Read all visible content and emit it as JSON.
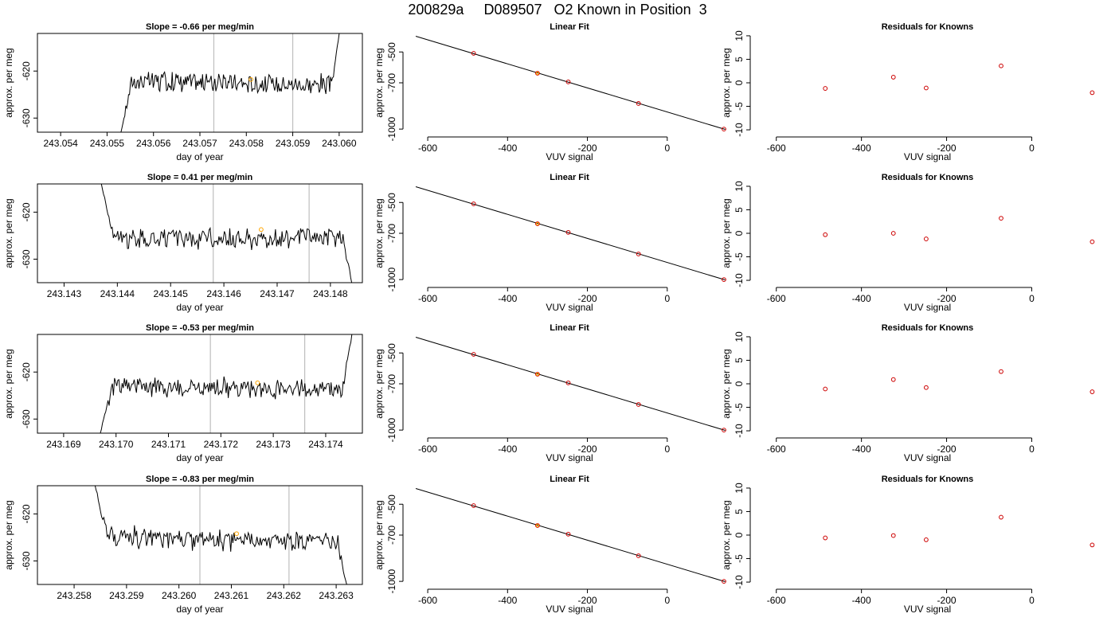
{
  "suptitle": "200829a     D089507   O2 Known in Position  3",
  "chart_data": [
    {
      "type": "line",
      "title": "Slope =  -0.66  per meg/min",
      "xlabel": "day of year",
      "ylabel": "approx. per meg",
      "xlim": [
        243.0535,
        243.0605
      ],
      "ylim": [
        -633,
        -612
      ],
      "xticks": [
        "243.054",
        "243.055",
        "243.056",
        "243.057",
        "243.058",
        "243.059",
        "243.060"
      ],
      "yticks": [
        -620,
        -630
      ],
      "vlines": [
        243.0573,
        243.059
      ],
      "trace": {
        "start": 243.0553,
        "end": 243.06,
        "level": -622.5,
        "trend": -0.66,
        "start_value": -633,
        "end_value": -612
      },
      "marker": {
        "x": 243.0581,
        "y": -621.8
      }
    },
    {
      "type": "scatter",
      "title": "Linear Fit",
      "xlabel": "VUV signal",
      "ylabel": "approx. per meg",
      "xlim": [
        -650,
        160
      ],
      "ylim": [
        -1020,
        -380
      ],
      "xticks": [
        -600,
        -400,
        -200,
        0
      ],
      "yticks": [
        -500,
        -700,
        -1000
      ],
      "line": {
        "x": [
          -630,
          145
        ],
        "y": [
          -398,
          -1002
        ]
      },
      "points": [
        {
          "x": -485,
          "y": -509
        },
        {
          "x": -325,
          "y": -638
        },
        {
          "x": -248,
          "y": -694
        },
        {
          "x": -72,
          "y": -834
        },
        {
          "x": 142,
          "y": -1000
        }
      ],
      "known_index": 1
    },
    {
      "type": "scatter",
      "title": "Residuals for Knowns",
      "xlabel": "VUV signal",
      "ylabel": "approx. per meg",
      "xlim": [
        -650,
        160
      ],
      "ylim": [
        -10.5,
        10.5
      ],
      "xticks": [
        -600,
        -400,
        -200,
        0
      ],
      "yticks": [
        -10,
        -5,
        0,
        5,
        10
      ],
      "points": [
        {
          "x": -485,
          "y": -1.2
        },
        {
          "x": -325,
          "y": 1.2
        },
        {
          "x": -248,
          "y": -1.1
        },
        {
          "x": -72,
          "y": 3.6
        },
        {
          "x": 142,
          "y": -2.1
        }
      ]
    },
    {
      "type": "line",
      "title": "Slope =  0.41  per meg/min",
      "xlabel": "day of year",
      "ylabel": "approx. per meg",
      "xlim": [
        243.1425,
        243.1486
      ],
      "ylim": [
        -635,
        -614
      ],
      "xticks": [
        "243.143",
        "243.144",
        "243.145",
        "243.146",
        "243.147",
        "243.148"
      ],
      "yticks": [
        -620,
        -630
      ],
      "vlines": [
        243.1458,
        243.1476
      ],
      "trace": {
        "start": 243.1437,
        "end": 243.1484,
        "level": -625.5,
        "trend": 0.41,
        "start_value": -614,
        "end_value": -635
      },
      "marker": {
        "x": 243.1467,
        "y": -623.7
      }
    },
    {
      "type": "scatter",
      "title": "Linear Fit",
      "xlabel": "VUV signal",
      "ylabel": "approx. per meg",
      "xlim": [
        -650,
        160
      ],
      "ylim": [
        -1020,
        -380
      ],
      "xticks": [
        -600,
        -400,
        -200,
        0
      ],
      "yticks": [
        -500,
        -700,
        -1000
      ],
      "line": {
        "x": [
          -630,
          145
        ],
        "y": [
          -398,
          -1002
        ]
      },
      "points": [
        {
          "x": -485,
          "y": -509
        },
        {
          "x": -325,
          "y": -638
        },
        {
          "x": -248,
          "y": -694
        },
        {
          "x": -72,
          "y": -834
        },
        {
          "x": 142,
          "y": -1000
        }
      ],
      "known_index": 1
    },
    {
      "type": "scatter",
      "title": "Residuals for Knowns",
      "xlabel": "VUV signal",
      "ylabel": "approx. per meg",
      "xlim": [
        -650,
        160
      ],
      "ylim": [
        -10.5,
        10.5
      ],
      "xticks": [
        -600,
        -400,
        -200,
        0
      ],
      "yticks": [
        -10,
        -5,
        0,
        5,
        10
      ],
      "points": [
        {
          "x": -485,
          "y": -0.3
        },
        {
          "x": -325,
          "y": 0.0
        },
        {
          "x": -248,
          "y": -1.2
        },
        {
          "x": -72,
          "y": 3.2
        },
        {
          "x": 142,
          "y": -1.8
        }
      ]
    },
    {
      "type": "line",
      "title": "Slope =  -0.53  per meg/min",
      "xlabel": "day of year",
      "ylabel": "approx. per meg",
      "xlim": [
        243.1685,
        243.1747
      ],
      "ylim": [
        -633,
        -612
      ],
      "xticks": [
        "243.169",
        "243.170",
        "243.171",
        "243.172",
        "243.173",
        "243.174"
      ],
      "yticks": [
        -620,
        -630
      ],
      "vlines": [
        243.1718,
        243.1736
      ],
      "trace": {
        "start": 243.1697,
        "end": 243.1745,
        "level": -623.5,
        "trend": -0.53,
        "start_value": -633,
        "end_value": -612
      },
      "marker": {
        "x": 243.1727,
        "y": -622.3
      }
    },
    {
      "type": "scatter",
      "title": "Linear Fit",
      "xlabel": "VUV signal",
      "ylabel": "approx. per meg",
      "xlim": [
        -650,
        160
      ],
      "ylim": [
        -1020,
        -380
      ],
      "xticks": [
        -600,
        -400,
        -200,
        0
      ],
      "yticks": [
        -500,
        -700,
        -1000
      ],
      "line": {
        "x": [
          -630,
          145
        ],
        "y": [
          -398,
          -1002
        ]
      },
      "points": [
        {
          "x": -485,
          "y": -509
        },
        {
          "x": -325,
          "y": -638
        },
        {
          "x": -248,
          "y": -694
        },
        {
          "x": -72,
          "y": -834
        },
        {
          "x": 142,
          "y": -1000
        }
      ],
      "known_index": 1
    },
    {
      "type": "scatter",
      "title": "Residuals for Knowns",
      "xlabel": "VUV signal",
      "ylabel": "approx. per meg",
      "xlim": [
        -650,
        160
      ],
      "ylim": [
        -10.5,
        10.5
      ],
      "xticks": [
        -600,
        -400,
        -200,
        0
      ],
      "yticks": [
        -10,
        -5,
        0,
        5,
        10
      ],
      "points": [
        {
          "x": -485,
          "y": -1.1
        },
        {
          "x": -325,
          "y": 0.9
        },
        {
          "x": -248,
          "y": -0.8
        },
        {
          "x": -72,
          "y": 2.6
        },
        {
          "x": 142,
          "y": -1.7
        }
      ]
    },
    {
      "type": "line",
      "title": "Slope =  -0.83  per meg/min",
      "xlabel": "day of year",
      "ylabel": "approx. per meg",
      "xlim": [
        243.2573,
        243.2635
      ],
      "ylim": [
        -635,
        -614
      ],
      "xticks": [
        "243.258",
        "243.259",
        "243.260",
        "243.261",
        "243.262",
        "243.263"
      ],
      "yticks": [
        -620,
        -630
      ],
      "vlines": [
        243.2604,
        243.2621
      ],
      "trace": {
        "start": 243.2584,
        "end": 243.2632,
        "level": -625.5,
        "trend": -0.83,
        "start_value": -614,
        "end_value": -635
      },
      "marker": {
        "x": 243.2611,
        "y": -624.2
      }
    },
    {
      "type": "scatter",
      "title": "Linear Fit",
      "xlabel": "VUV signal",
      "ylabel": "approx. per meg",
      "xlim": [
        -650,
        160
      ],
      "ylim": [
        -1020,
        -380
      ],
      "xticks": [
        -600,
        -400,
        -200,
        0
      ],
      "yticks": [
        -500,
        -700,
        -1000
      ],
      "line": {
        "x": [
          -630,
          145
        ],
        "y": [
          -398,
          -1002
        ]
      },
      "points": [
        {
          "x": -485,
          "y": -509
        },
        {
          "x": -325,
          "y": -638
        },
        {
          "x": -248,
          "y": -694
        },
        {
          "x": -72,
          "y": -834
        },
        {
          "x": 142,
          "y": -1000
        }
      ],
      "known_index": 1
    },
    {
      "type": "scatter",
      "title": "Residuals for Knowns",
      "xlabel": "VUV signal",
      "ylabel": "approx. per meg",
      "xlim": [
        -650,
        160
      ],
      "ylim": [
        -10.5,
        10.5
      ],
      "xticks": [
        -600,
        -400,
        -200,
        0
      ],
      "yticks": [
        -10,
        -5,
        0,
        5,
        10
      ],
      "points": [
        {
          "x": -485,
          "y": -0.6
        },
        {
          "x": -325,
          "y": -0.1
        },
        {
          "x": -248,
          "y": -1.0
        },
        {
          "x": -72,
          "y": 3.8
        },
        {
          "x": 142,
          "y": -2.1
        }
      ]
    }
  ],
  "colors": {
    "trace": "#000000",
    "vline": "#bebebe",
    "known_marker": "#ffa500",
    "point": "#cd0000",
    "fit_line": "#000000"
  }
}
